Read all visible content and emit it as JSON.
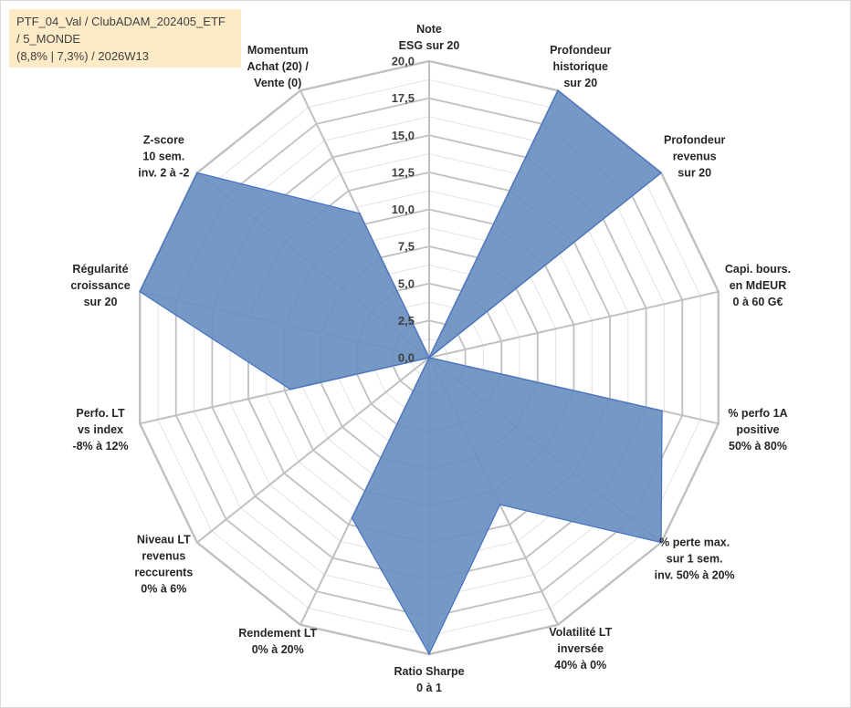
{
  "title": {
    "line1": "PTF_04_Val / ClubADAM_202405_ETF",
    "line2": " / 5_MONDE",
    "line3": "(8,8% | 7,3%) / 2026W13"
  },
  "colors": {
    "fill": "#6a8fbf",
    "stroke": "#4472c4",
    "grid": "#c0c0c0",
    "minor_grid": "#e3e3e3"
  },
  "chart_data": {
    "type": "radar",
    "title": "PTF_04_Val / ClubADAM_202405_ETF / 5_MONDE (8,8% | 7,3%) / 2026W13",
    "rmin": 0,
    "rmax": 20,
    "ticks": [
      "0,0",
      "2,5",
      "5,0",
      "7,5",
      "10,0",
      "12,5",
      "15,0",
      "17,5",
      "20,0"
    ],
    "categories": [
      {
        "lines": [
          "Note",
          "ESG sur 20"
        ]
      },
      {
        "lines": [
          "Profondeur",
          "historique",
          "sur 20"
        ]
      },
      {
        "lines": [
          "Profondeur",
          "revenus",
          "sur 20"
        ]
      },
      {
        "lines": [
          "Capi. bours.",
          "en MdEUR",
          "0 à 60 G€"
        ]
      },
      {
        "lines": [
          "% perfo 1A",
          "positive",
          "50% à 80%"
        ]
      },
      {
        "lines": [
          "% perte max.",
          "sur 1 sem.",
          "inv. 50% à 20%"
        ]
      },
      {
        "lines": [
          "Volatilité LT",
          "inversée",
          "40% à 0%"
        ]
      },
      {
        "lines": [
          "Ratio Sharpe",
          "0 à 1"
        ]
      },
      {
        "lines": [
          "Rendement LT",
          "0% à 20%"
        ]
      },
      {
        "lines": [
          "Niveau LT",
          "revenus",
          "reccurents",
          "0% à 6%"
        ]
      },
      {
        "lines": [
          "Perfo. LT",
          "vs index",
          "-8% à 12%"
        ]
      },
      {
        "lines": [
          "Régularité",
          "croissance",
          "sur 20"
        ]
      },
      {
        "lines": [
          "Z-score",
          "10 sem.",
          "inv. 2 à -2"
        ]
      },
      {
        "lines": [
          "Momentum",
          "Achat (20) /",
          "Vente (0)"
        ]
      }
    ],
    "series": [
      {
        "name": "PTF_04_Val",
        "values": [
          0,
          20,
          20,
          0,
          16.1,
          20,
          11.0,
          20,
          12.0,
          0,
          9.6,
          20,
          20,
          10.8
        ]
      }
    ]
  }
}
